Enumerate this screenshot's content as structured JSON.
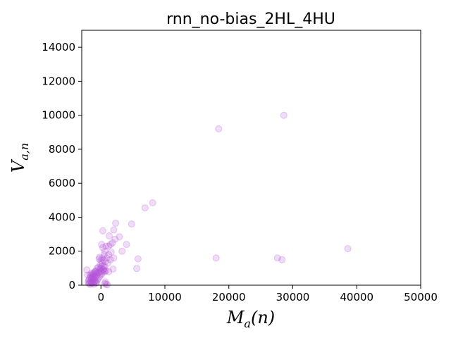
{
  "chart_data": {
    "type": "scatter",
    "title": "rnn_no-bias_2HL_4HU",
    "xlabel": {
      "base": "M",
      "sub": "a",
      "suffix": "(n)"
    },
    "ylabel": {
      "base": "V",
      "sub": "a,n"
    },
    "xlim": [
      -3000,
      50000
    ],
    "ylim": [
      0,
      15000
    ],
    "x_ticks": [
      0,
      10000,
      20000,
      30000,
      40000,
      50000
    ],
    "y_ticks": [
      0,
      2000,
      4000,
      6000,
      8000,
      10000,
      12000,
      14000
    ],
    "x_tick_labels": [
      "0",
      "10000",
      "20000",
      "30000",
      "40000",
      "50000"
    ],
    "y_tick_labels": [
      "0",
      "2000",
      "4000",
      "6000",
      "8000",
      "10000",
      "12000",
      "14000"
    ],
    "marker_color": "#b452d6",
    "marker_alpha": 0.2,
    "grid": false,
    "points": [
      {
        "x": 28600,
        "y": 10000
      },
      {
        "x": 18400,
        "y": 9200
      },
      {
        "x": 8100,
        "y": 4850
      },
      {
        "x": 6900,
        "y": 4550
      },
      {
        "x": 4800,
        "y": 3600
      },
      {
        "x": 2300,
        "y": 3650
      },
      {
        "x": 2000,
        "y": 3250
      },
      {
        "x": 300,
        "y": 3200
      },
      {
        "x": 2900,
        "y": 2850
      },
      {
        "x": 4000,
        "y": 2400
      },
      {
        "x": 3300,
        "y": 2000
      },
      {
        "x": 2200,
        "y": 2700
      },
      {
        "x": 1800,
        "y": 2500
      },
      {
        "x": 1300,
        "y": 2900
      },
      {
        "x": 1500,
        "y": 2400
      },
      {
        "x": 1200,
        "y": 2300
      },
      {
        "x": 1600,
        "y": 1950
      },
      {
        "x": 1200,
        "y": 1800
      },
      {
        "x": 2000,
        "y": 1600
      },
      {
        "x": 1500,
        "y": 1500
      },
      {
        "x": 600,
        "y": 2000
      },
      {
        "x": 800,
        "y": 2300
      },
      {
        "x": 100,
        "y": 2400
      },
      {
        "x": 300,
        "y": 2200
      },
      {
        "x": 500,
        "y": 1800
      },
      {
        "x": 900,
        "y": 1600
      },
      {
        "x": 700,
        "y": 1400
      },
      {
        "x": 600,
        "y": 1100
      },
      {
        "x": 1100,
        "y": 1300
      },
      {
        "x": 1900,
        "y": 950
      },
      {
        "x": 1200,
        "y": 800
      },
      {
        "x": 5800,
        "y": 1550
      },
      {
        "x": 5600,
        "y": 980
      },
      {
        "x": 18000,
        "y": 1600
      },
      {
        "x": 27600,
        "y": 1600
      },
      {
        "x": 28300,
        "y": 1500
      },
      {
        "x": 38600,
        "y": 2150
      },
      {
        "x": -200,
        "y": 1650
      },
      {
        "x": -300,
        "y": 1550
      },
      {
        "x": 0,
        "y": 1450
      },
      {
        "x": 200,
        "y": 1600
      },
      {
        "x": 400,
        "y": 1500
      },
      {
        "x": -100,
        "y": 1200
      },
      {
        "x": 200,
        "y": 1300
      },
      {
        "x": 400,
        "y": 1100
      },
      {
        "x": -600,
        "y": 1000
      },
      {
        "x": -400,
        "y": 1050
      },
      {
        "x": -200,
        "y": 950
      },
      {
        "x": 0,
        "y": 1000
      },
      {
        "x": 300,
        "y": 900
      },
      {
        "x": 500,
        "y": 850
      },
      {
        "x": 100,
        "y": 800
      },
      {
        "x": 600,
        "y": 800
      },
      {
        "x": 800,
        "y": 850
      },
      {
        "x": -800,
        "y": 850
      },
      {
        "x": -1000,
        "y": 780
      },
      {
        "x": -1200,
        "y": 700
      },
      {
        "x": -1400,
        "y": 600
      },
      {
        "x": -1600,
        "y": 500
      },
      {
        "x": -1800,
        "y": 400
      },
      {
        "x": -1900,
        "y": 300
      },
      {
        "x": -2000,
        "y": 200
      },
      {
        "x": -1900,
        "y": 100
      },
      {
        "x": -1700,
        "y": 50
      },
      {
        "x": -1500,
        "y": 150
      },
      {
        "x": -1300,
        "y": 250
      },
      {
        "x": -1100,
        "y": 350
      },
      {
        "x": -900,
        "y": 450
      },
      {
        "x": -700,
        "y": 550
      },
      {
        "x": -500,
        "y": 650
      },
      {
        "x": -300,
        "y": 750
      },
      {
        "x": -100,
        "y": 850
      },
      {
        "x": -1600,
        "y": 250
      },
      {
        "x": -1400,
        "y": 350
      },
      {
        "x": -1200,
        "y": 450
      },
      {
        "x": -1000,
        "y": 550
      },
      {
        "x": -800,
        "y": 650
      },
      {
        "x": -600,
        "y": 750
      },
      {
        "x": -1700,
        "y": 600
      },
      {
        "x": -1500,
        "y": 700
      },
      {
        "x": -2100,
        "y": 600
      },
      {
        "x": -2200,
        "y": 900
      },
      {
        "x": -1800,
        "y": 150
      },
      {
        "x": -1400,
        "y": 100
      },
      {
        "x": -1100,
        "y": 60
      },
      {
        "x": -800,
        "y": 120
      },
      {
        "x": -1000,
        "y": 200
      },
      {
        "x": -600,
        "y": 300
      },
      {
        "x": -400,
        "y": 400
      },
      {
        "x": -200,
        "y": 500
      },
      {
        "x": 0,
        "y": 600
      },
      {
        "x": 200,
        "y": 700
      },
      {
        "x": -1300,
        "y": 500
      },
      {
        "x": -900,
        "y": 250
      },
      {
        "x": -700,
        "y": 150
      },
      {
        "x": -1200,
        "y": 150
      },
      {
        "x": -1500,
        "y": 400
      },
      {
        "x": -1100,
        "y": 650
      },
      {
        "x": -900,
        "y": 800
      },
      {
        "x": 600,
        "y": 100
      },
      {
        "x": 800,
        "y": 50
      },
      {
        "x": 1000,
        "y": 30
      },
      {
        "x": 700,
        "y": 200
      },
      {
        "x": 400,
        "y": 950
      },
      {
        "x": 100,
        "y": 1100
      }
    ]
  }
}
